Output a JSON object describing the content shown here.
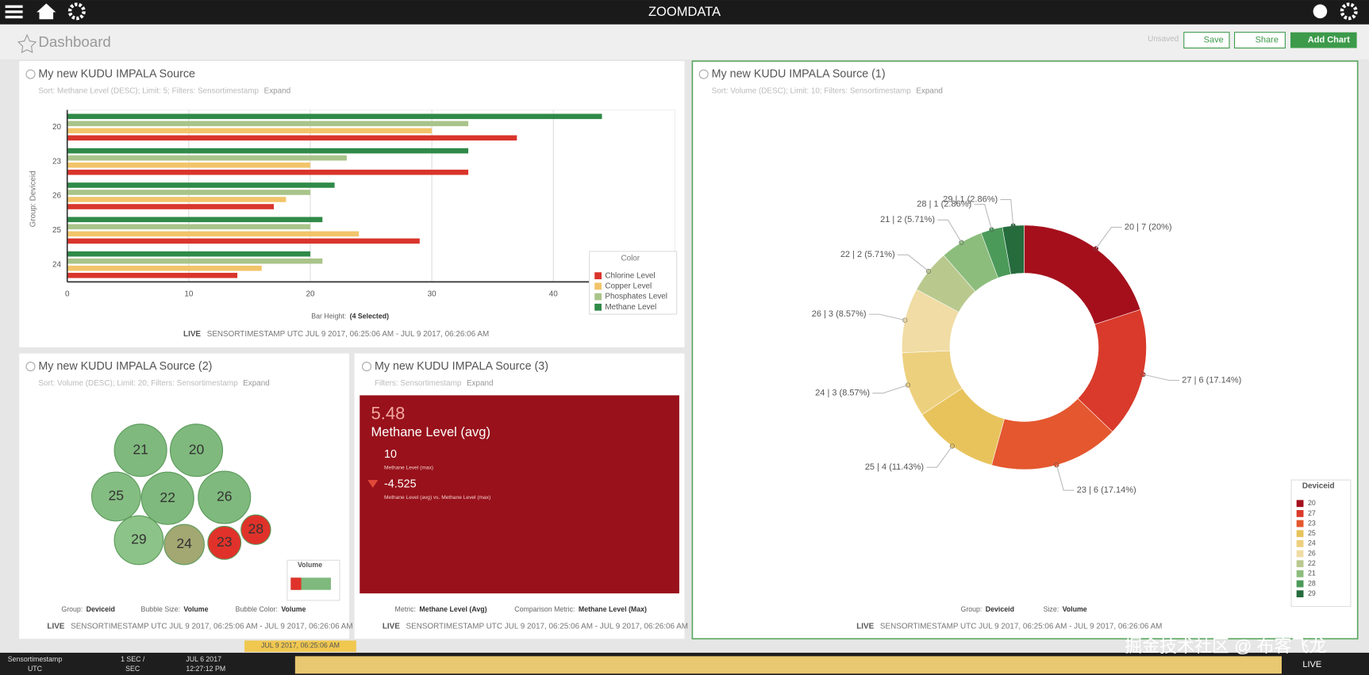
{
  "topbar": {
    "brand": "ZOOMDATA"
  },
  "toolbar": {
    "title": "Dashboard",
    "status": "Unsaved",
    "save": "Save",
    "share": "Share",
    "add_chart": "Add Chart"
  },
  "chart_data": [
    {
      "type": "bar",
      "orientation": "horizontal",
      "title": "My new KUDU IMPALA Source",
      "subtitle": "Sort: Methane Level (DESC); Limit: 5; Filters: Sensortimestamp",
      "expand": "Expand",
      "y_label": "Group: Deviceid",
      "categories": [
        "20",
        "23",
        "26",
        "25",
        "24"
      ],
      "series": [
        {
          "name": "Chlorine Level",
          "color": "#d9352b",
          "values": [
            37,
            33,
            17,
            29,
            14
          ]
        },
        {
          "name": "Copper Level",
          "color": "#f2c46a",
          "values": [
            30,
            20,
            18,
            24,
            16
          ]
        },
        {
          "name": "Phosphates Level",
          "color": "#a9c48a",
          "values": [
            33,
            23,
            20,
            20,
            21
          ]
        },
        {
          "name": "Methane Level",
          "color": "#2f8a48",
          "values": [
            44,
            33,
            22,
            21,
            20
          ]
        }
      ],
      "xlim": [
        0,
        50
      ],
      "xticks": [
        0,
        10,
        20,
        30,
        40
      ],
      "grid": true,
      "legend_title": "Color",
      "legend": "bottom right",
      "x_label_name": "Bar Height:",
      "x_label_value": "(4 Selected)",
      "footer": {
        "live": "LIVE",
        "range": "SENSORTIMESTAMP UTC JUL 9 2017, 06:25:06 AM - JUL 9 2017, 06:26:06 AM"
      }
    },
    {
      "type": "donut",
      "title": "My new KUDU IMPALA Source (1)",
      "subtitle": "Sort: Volume (DESC); Limit: 10; Filters: Sensortimestamp",
      "expand": "Expand",
      "categories": [
        "20",
        "27",
        "23",
        "25",
        "24",
        "26",
        "22",
        "21",
        "28",
        "29"
      ],
      "values": [
        7,
        6,
        6,
        4,
        3,
        3,
        2,
        2,
        1,
        1
      ],
      "value_labels": [
        "20 | 7 (20%)",
        "27 | 6 (17.14%)",
        "23 | 6 (17.14%)",
        "25 | 4 (11.43%)",
        "24 | 3 (8.57%)",
        "26 | 3 (8.57%)",
        "22 | 2 (5.71%)",
        "21 | 2 (5.71%)",
        "28 | 1 (2.86%)",
        "29 | 1 (2.86%)"
      ],
      "colors": [
        "#a50f1c",
        "#d93a2b",
        "#e4572f",
        "#e8c35c",
        "#edd07e",
        "#f0dca4",
        "#b9c98e",
        "#8cbd7c",
        "#4c9a5a",
        "#256b3c"
      ],
      "legend_title": "Deviceid",
      "legend": "bottom right",
      "group_label": "Group:",
      "group_value": "Deviceid",
      "size_label": "Size:",
      "size_value": "Volume",
      "footer": {
        "live": "LIVE",
        "range": "SENSORTIMESTAMP UTC JUL 9 2017, 06:25:06 AM - JUL 9 2017, 06:26:06 AM"
      }
    }
  ],
  "bubble_panel": {
    "title": "My new KUDU IMPALA Source (2)",
    "subtitle": "Sort: Volume (DESC); Limit: 20; Filters: Sensortimestamp",
    "expand": "Expand",
    "bubbles": [
      "21",
      "20",
      "25",
      "22",
      "26",
      "29",
      "24",
      "23",
      "28"
    ],
    "legend_title": "Volume",
    "group_label": "Group:",
    "group_value": "Deviceid",
    "size_label": "Bubble Size:",
    "size_value": "Volume",
    "color_label": "Bubble Color:",
    "color_value": "Volume",
    "footer": {
      "live": "LIVE",
      "range": "SENSORTIMESTAMP UTC JUL 9 2017, 06:25:06 AM - JUL 9 2017, 06:26:06 AM"
    }
  },
  "kpi_panel": {
    "title": "My new KUDU IMPALA Source (3)",
    "subtitle": "Filters: Sensortimestamp",
    "expand": "Expand",
    "value": "5.48",
    "metric": "Methane Level (avg)",
    "comparison": "10",
    "comparison_metric": "Methane Level (max)",
    "delta": "-4.525",
    "delta_label": "Methane Level (avg) vs. Methane Level (max)",
    "metric_label": "Metric:",
    "metric_value": "Methane Level (Avg)",
    "comp_label": "Comparison Metric:",
    "comp_value": "Methane Level (Max)",
    "footer": {
      "live": "LIVE",
      "range": "SENSORTIMESTAMP UTC JUL 9 2017, 06:25:06 AM - JUL 9 2017, 06:26:06 AM"
    }
  },
  "timebar": {
    "field": "Sensortimestamp",
    "tz": "UTC",
    "rate": "1 SEC /",
    "rate_unit": "SEC",
    "start_date": "JUL 6 2017",
    "start_time": "12:27:12 PM",
    "cursor": "JUL 9 2017, 06:25:06 AM",
    "live": "LIVE"
  },
  "watermark": "掘金技术社区 @ 布客飞龙"
}
